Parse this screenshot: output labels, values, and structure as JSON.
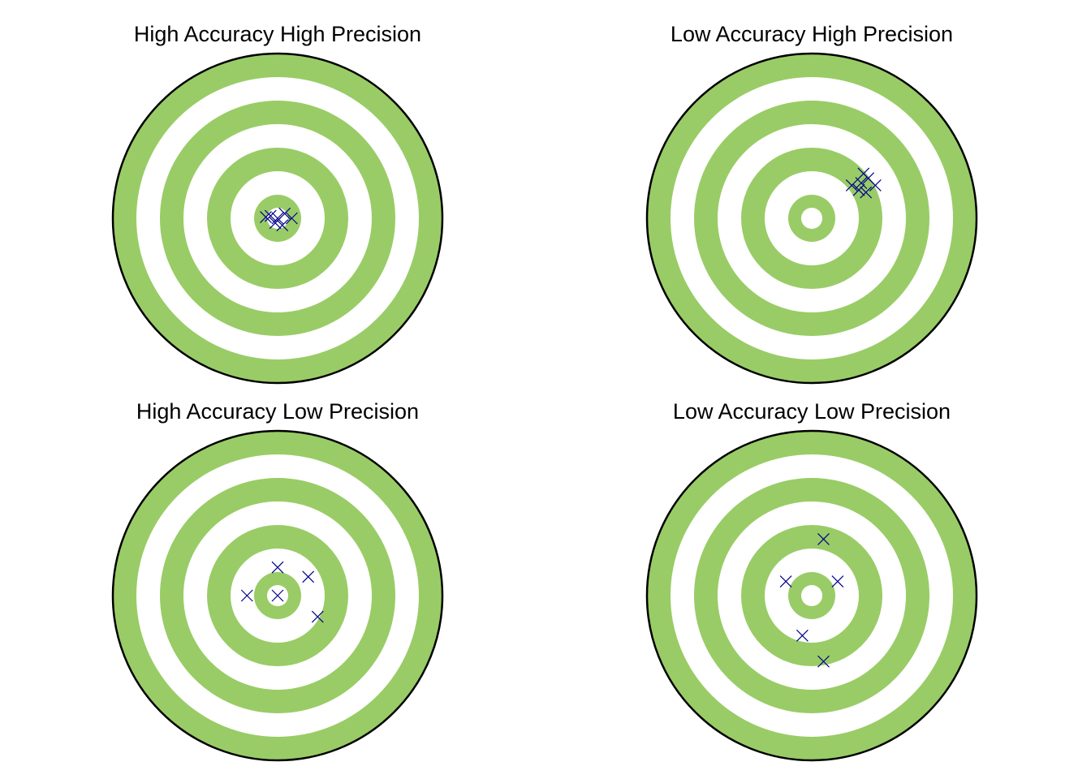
{
  "colors": {
    "ring": "#99cc66",
    "gap": "#ffffff",
    "outline": "#000000",
    "marker": "#00008b"
  },
  "chart_data": [
    {
      "type": "scatter",
      "title": "High Accuracy High Precision",
      "rings": 7,
      "points": [
        [
          0,
          0
        ],
        [
          0.3,
          0.2
        ],
        [
          -0.3,
          0.1
        ],
        [
          0.2,
          -0.3
        ],
        [
          -0.1,
          -0.2
        ],
        [
          0.6,
          0
        ],
        [
          -0.5,
          0.05
        ]
      ]
    },
    {
      "type": "scatter",
      "title": "Low Accuracy High Precision",
      "rings": 7,
      "points": [
        [
          2.1,
          1.5
        ],
        [
          2.4,
          1.7
        ],
        [
          2.0,
          1.2
        ],
        [
          2.7,
          1.4
        ],
        [
          1.7,
          1.4
        ],
        [
          2.3,
          1.1
        ],
        [
          2.2,
          1.9
        ]
      ]
    },
    {
      "type": "scatter",
      "title": "High Accuracy Low Precision",
      "rings": 7,
      "points": [
        [
          0,
          0
        ],
        [
          0,
          1.2
        ],
        [
          1.3,
          0.8
        ],
        [
          -1.3,
          0
        ],
        [
          1.7,
          -0.9
        ]
      ]
    },
    {
      "type": "scatter",
      "title": "Low Accuracy Low Precision",
      "rings": 7,
      "points": [
        [
          0.5,
          2.4
        ],
        [
          -1.1,
          0.6
        ],
        [
          1.1,
          0.6
        ],
        [
          -0.4,
          -1.7
        ],
        [
          0.5,
          -2.8
        ]
      ]
    }
  ]
}
